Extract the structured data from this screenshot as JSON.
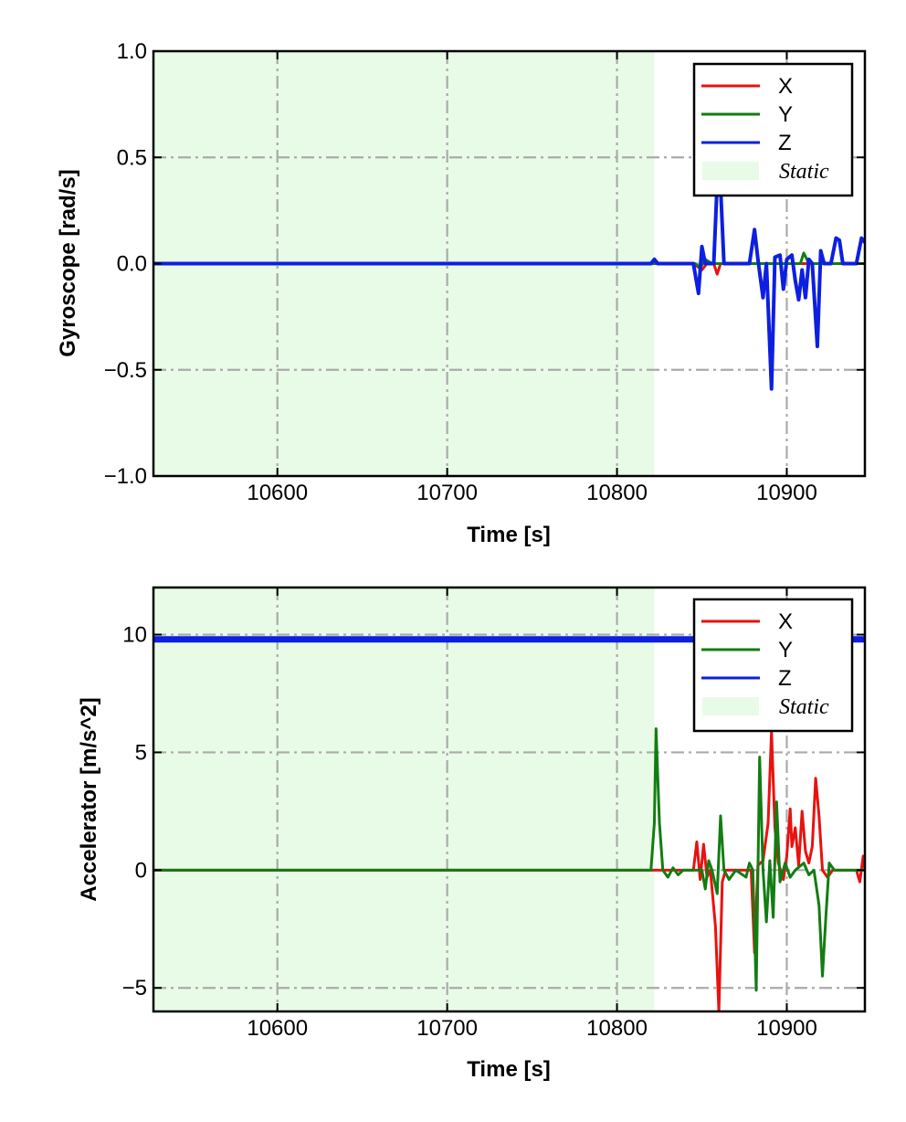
{
  "chart_data": [
    {
      "type": "line",
      "title": "",
      "xlabel": "Time [s]",
      "ylabel": "Gyroscope [rad/s]",
      "xlim": [
        10527,
        10946
      ],
      "ylim": [
        -1.0,
        1.0
      ],
      "xticks": [
        10600,
        10700,
        10800,
        10900
      ],
      "xtick_labels": [
        "10600",
        "10700",
        "10800",
        "10900"
      ],
      "yticks": [
        1.0,
        0.5,
        0.0,
        -0.5,
        -1.0
      ],
      "ytick_labels": [
        "1.0",
        "0.5",
        "0.0",
        "−0.5",
        "−1.0"
      ],
      "grid": true,
      "legend_position": "top-right",
      "static_region": {
        "label": "Static",
        "x": [
          10527,
          10822
        ],
        "color": "#e8fbe6"
      },
      "series": [
        {
          "name": "X",
          "color": "#e8120f",
          "lw": 3,
          "points": [
            [
              10527,
              0
            ],
            [
              10822,
              0
            ],
            [
              10845,
              0
            ],
            [
              10850,
              -0.03
            ],
            [
              10853,
              0
            ],
            [
              10857,
              0
            ],
            [
              10859,
              -0.05
            ],
            [
              10861,
              0
            ],
            [
              10946,
              0
            ]
          ]
        },
        {
          "name": "Y",
          "color": "#127d12",
          "lw": 3,
          "points": [
            [
              10527,
              0
            ],
            [
              10822,
              0
            ],
            [
              10846,
              0
            ],
            [
              10849,
              -0.02
            ],
            [
              10852,
              0.02
            ],
            [
              10856,
              0
            ],
            [
              10908,
              0
            ],
            [
              10910,
              0.05
            ],
            [
              10913,
              0
            ],
            [
              10946,
              0
            ]
          ]
        },
        {
          "name": "Z",
          "color": "#0d1fe0",
          "lw": 4,
          "points": [
            [
              10527,
              0
            ],
            [
              10820,
              0
            ],
            [
              10822,
              0.02
            ],
            [
              10824,
              0
            ],
            [
              10845,
              0
            ],
            [
              10848,
              -0.14
            ],
            [
              10850,
              0.08
            ],
            [
              10852,
              0
            ],
            [
              10857,
              0
            ],
            [
              10859,
              0.38
            ],
            [
              10861,
              0.36
            ],
            [
              10863,
              0
            ],
            [
              10878,
              0
            ],
            [
              10881,
              0.16
            ],
            [
              10883,
              0.02
            ],
            [
              10886,
              -0.16
            ],
            [
              10888,
              0
            ],
            [
              10891,
              -0.59
            ],
            [
              10893,
              0.03
            ],
            [
              10896,
              0.04
            ],
            [
              10898,
              -0.12
            ],
            [
              10900,
              0.02
            ],
            [
              10903,
              0.04
            ],
            [
              10905,
              -0.08
            ],
            [
              10907,
              -0.17
            ],
            [
              10909,
              -0.03
            ],
            [
              10911,
              -0.16
            ],
            [
              10913,
              0.02
            ],
            [
              10915,
              0
            ],
            [
              10918,
              -0.39
            ],
            [
              10920,
              0.06
            ],
            [
              10922,
              0
            ],
            [
              10926,
              0
            ],
            [
              10929,
              0.12
            ],
            [
              10931,
              0.11
            ],
            [
              10933,
              0
            ],
            [
              10941,
              0
            ],
            [
              10944,
              0.12
            ],
            [
              10946,
              0.1
            ]
          ]
        }
      ]
    },
    {
      "type": "line",
      "title": "",
      "xlabel": "Time [s]",
      "ylabel": "Accelerator [m/s^2]",
      "xlim": [
        10527,
        10946
      ],
      "ylim": [
        -6.0,
        12.0
      ],
      "xticks": [
        10600,
        10700,
        10800,
        10900
      ],
      "xtick_labels": [
        "10600",
        "10700",
        "10800",
        "10900"
      ],
      "yticks": [
        10,
        5,
        0,
        -5
      ],
      "ytick_labels": [
        "10",
        "5",
        "0",
        "−5"
      ],
      "grid": true,
      "legend_position": "top-right",
      "static_region": {
        "label": "Static",
        "x": [
          10527,
          10822
        ],
        "color": "#e8fbe6"
      },
      "series": [
        {
          "name": "X",
          "color": "#e8120f",
          "lw": 3,
          "points": [
            [
              10527,
              0
            ],
            [
              10845,
              0
            ],
            [
              10847,
              1.2
            ],
            [
              10849,
              -0.4
            ],
            [
              10851,
              1.1
            ],
            [
              10853,
              -0.3
            ],
            [
              10855,
              0
            ],
            [
              10858,
              -2.4
            ],
            [
              10860,
              -6.0
            ],
            [
              10862,
              -0.5
            ],
            [
              10864,
              0
            ],
            [
              10879,
              0
            ],
            [
              10881,
              -3.5
            ],
            [
              10883,
              0.2
            ],
            [
              10886,
              0.4
            ],
            [
              10889,
              2.0
            ],
            [
              10891,
              5.9
            ],
            [
              10893,
              1.8
            ],
            [
              10895,
              0.3
            ],
            [
              10898,
              -0.4
            ],
            [
              10900,
              0.6
            ],
            [
              10902,
              2.6
            ],
            [
              10903,
              1.0
            ],
            [
              10905,
              1.8
            ],
            [
              10907,
              0.2
            ],
            [
              10909,
              2.5
            ],
            [
              10911,
              0.8
            ],
            [
              10913,
              0.3
            ],
            [
              10915,
              1.0
            ],
            [
              10917,
              3.9
            ],
            [
              10919,
              2.3
            ],
            [
              10921,
              0
            ],
            [
              10924,
              -0.3
            ],
            [
              10927,
              0
            ],
            [
              10941,
              0
            ],
            [
              10943,
              -0.5
            ],
            [
              10945,
              0.6
            ],
            [
              10946,
              0
            ]
          ]
        },
        {
          "name": "Y",
          "color": "#127d12",
          "lw": 3,
          "points": [
            [
              10527,
              0
            ],
            [
              10820,
              0
            ],
            [
              10822,
              2.0
            ],
            [
              10823,
              6.0
            ],
            [
              10825,
              2.0
            ],
            [
              10827,
              0
            ],
            [
              10830,
              -0.3
            ],
            [
              10833,
              0.1
            ],
            [
              10836,
              -0.2
            ],
            [
              10839,
              0
            ],
            [
              10850,
              0
            ],
            [
              10852,
              -0.8
            ],
            [
              10854,
              0.4
            ],
            [
              10856,
              0
            ],
            [
              10859,
              -1.0
            ],
            [
              10861,
              2.3
            ],
            [
              10863,
              0
            ],
            [
              10866,
              -0.4
            ],
            [
              10870,
              0
            ],
            [
              10876,
              -0.3
            ],
            [
              10878,
              0.3
            ],
            [
              10880,
              0
            ],
            [
              10882,
              -5.1
            ],
            [
              10884,
              4.8
            ],
            [
              10886,
              0
            ],
            [
              10888,
              -2.2
            ],
            [
              10890,
              0.4
            ],
            [
              10892,
              -2.0
            ],
            [
              10894,
              2.9
            ],
            [
              10896,
              -0.5
            ],
            [
              10899,
              0.3
            ],
            [
              10902,
              -0.3
            ],
            [
              10905,
              0
            ],
            [
              10910,
              0.3
            ],
            [
              10913,
              -0.2
            ],
            [
              10916,
              0
            ],
            [
              10919,
              -1.5
            ],
            [
              10921,
              -4.5
            ],
            [
              10923,
              -2.0
            ],
            [
              10925,
              0.3
            ],
            [
              10928,
              0
            ],
            [
              10946,
              0
            ]
          ]
        },
        {
          "name": "Z",
          "color": "#0d1fe0",
          "lw": 7,
          "points": [
            [
              10527,
              9.8
            ],
            [
              10946,
              9.8
            ]
          ]
        }
      ]
    }
  ]
}
